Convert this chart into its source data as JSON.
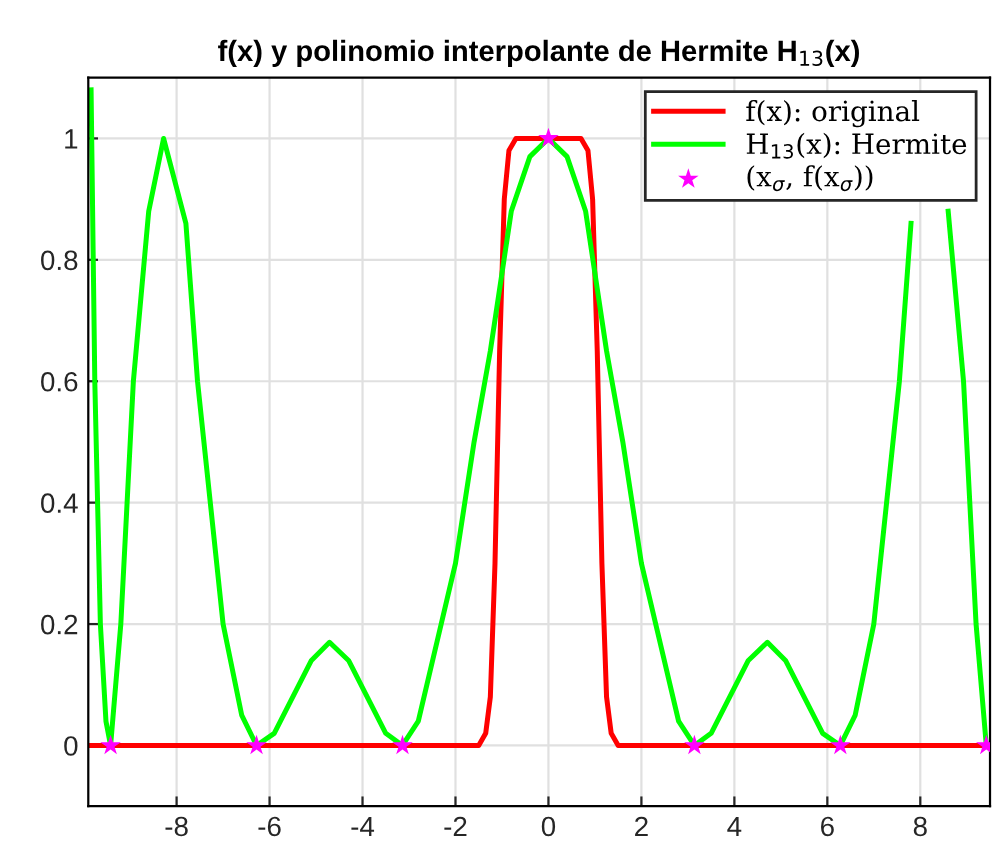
{
  "chart_data": {
    "type": "line",
    "title": "f(x) y polinomio interpolante de Hermite H$_{13}$(x)",
    "xlim": [
      -9.9,
      9.5
    ],
    "ylim": [
      -0.1,
      1.1
    ],
    "xticks": [
      -8,
      -6,
      -4,
      -2,
      0,
      2,
      4,
      6,
      8
    ],
    "yticks": [
      0,
      0.2,
      0.4,
      0.6,
      0.8,
      1
    ],
    "grid": true,
    "legend": "top right",
    "series": [
      {
        "name": "f(x): original",
        "color": "#ff0000",
        "x": [
          -9.9,
          -1.5,
          -1.35,
          -1.25,
          -1.15,
          -1.05,
          -0.95,
          -0.85,
          -0.7,
          0.7,
          0.85,
          0.95,
          1.05,
          1.15,
          1.25,
          1.35,
          1.5,
          9.5
        ],
        "values": [
          0,
          0,
          0.02,
          0.08,
          0.3,
          0.65,
          0.9,
          0.98,
          1,
          1,
          0.98,
          0.9,
          0.65,
          0.3,
          0.08,
          0.02,
          0,
          0
        ]
      },
      {
        "name": "H$_{13}$(x): Hermite",
        "color": "#00ff00",
        "x": [
          -9.84,
          -9.76,
          -9.64,
          -9.52,
          -9.42,
          -9.2,
          -8.93,
          -8.6,
          -8.28,
          -7.8,
          -7.55,
          -7.0,
          -6.6,
          -6.28,
          -5.9,
          -5.5,
          -5.1,
          -4.71,
          -4.3,
          -3.9,
          -3.5,
          -3.14,
          -2.8,
          -2.4,
          -2.0,
          -1.6,
          -1.25,
          -0.8,
          -0.4,
          0,
          0.4,
          0.8,
          1.25,
          1.6,
          2.0,
          2.4,
          2.8,
          3.14,
          3.5,
          3.9,
          4.3,
          4.71,
          5.1,
          5.5,
          5.9,
          6.28,
          6.6,
          7.0,
          7.55,
          7.8,
          8.28,
          8.6,
          8.93,
          9.2,
          9.42
        ],
        "values": [
          1.08,
          0.6,
          0.2,
          0.04,
          0,
          0.2,
          0.6,
          0.88,
          1.0,
          0.86,
          0.6,
          0.2,
          0.05,
          0,
          0.02,
          0.08,
          0.14,
          0.17,
          0.14,
          0.08,
          0.02,
          0,
          0.04,
          0.17,
          0.3,
          0.5,
          0.65,
          0.88,
          0.97,
          1.0,
          0.97,
          0.88,
          0.65,
          0.5,
          0.3,
          0.17,
          0.04,
          0,
          0.02,
          0.08,
          0.14,
          0.17,
          0.14,
          0.08,
          0.02,
          0,
          0.05,
          0.2,
          0.6,
          0.86,
          null,
          0.88,
          0.6,
          0.2,
          0
        ]
      },
      {
        "name": "(x$_{σ}$, f(x$_{σ}$))",
        "color": "#ff00ff",
        "type": "scatter",
        "marker": "star",
        "x": [
          -9.42,
          -6.28,
          -3.14,
          0,
          3.14,
          6.28,
          9.42
        ],
        "values": [
          0,
          0,
          0,
          1,
          0,
          0,
          0
        ]
      }
    ]
  }
}
